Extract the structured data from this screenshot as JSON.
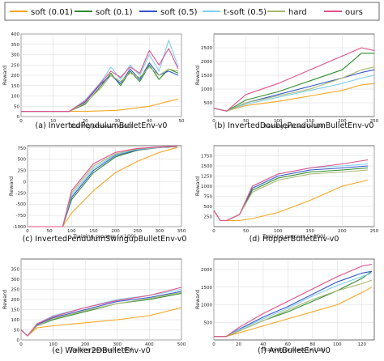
{
  "legend": [
    {
      "name": "soft (0.01)",
      "color": "#f5a623"
    },
    {
      "name": "soft (0.1)",
      "color": "#2e8b2e"
    },
    {
      "name": "soft (0.5)",
      "color": "#3355cc"
    },
    {
      "name": "t-soft (0.5)",
      "color": "#7fcfee"
    },
    {
      "name": "hard",
      "color": "#a8b870"
    },
    {
      "name": "ours",
      "color": "#e0508a"
    }
  ],
  "chart_data": [
    {
      "type": "line",
      "caption": "(a) InvertedPendulumBulletEnv-v0",
      "xlabel": "Training process (×100)",
      "ylabel": "Reward",
      "xlim": [
        0,
        50
      ],
      "ylim": [
        0,
        400
      ],
      "xticks": [
        0,
        10,
        20,
        30,
        40,
        50
      ],
      "yticks": [
        0,
        50,
        100,
        150,
        200,
        250,
        300,
        350,
        400
      ],
      "grid": true,
      "series": [
        {
          "name": "soft (0.01)",
          "x": [
            0,
            10,
            20,
            25,
            30,
            35,
            40,
            45,
            49
          ],
          "y": [
            25,
            25,
            25,
            28,
            30,
            40,
            50,
            70,
            85
          ]
        },
        {
          "name": "soft (0.1)",
          "x": [
            0,
            10,
            15,
            20,
            25,
            28,
            31,
            34,
            37,
            40,
            43,
            46,
            49
          ],
          "y": [
            25,
            25,
            25,
            60,
            150,
            210,
            150,
            220,
            170,
            250,
            180,
            230,
            210
          ]
        },
        {
          "name": "soft (0.5)",
          "x": [
            0,
            10,
            15,
            20,
            25,
            28,
            31,
            34,
            37,
            40,
            43,
            46,
            49
          ],
          "y": [
            25,
            25,
            25,
            70,
            160,
            200,
            160,
            230,
            180,
            260,
            200,
            220,
            200
          ]
        },
        {
          "name": "t-soft (0.5)",
          "x": [
            0,
            10,
            15,
            20,
            25,
            28,
            31,
            34,
            37,
            40,
            43,
            46,
            49
          ],
          "y": [
            25,
            25,
            25,
            80,
            170,
            240,
            180,
            250,
            200,
            300,
            220,
            370,
            240
          ]
        },
        {
          "name": "hard",
          "x": [
            0,
            10,
            15,
            20,
            25,
            28,
            31,
            34,
            37,
            40,
            43,
            46,
            49
          ],
          "y": [
            25,
            25,
            25,
            65,
            140,
            200,
            170,
            210,
            190,
            240,
            200,
            230,
            220
          ]
        },
        {
          "name": "ours",
          "x": [
            0,
            10,
            15,
            20,
            25,
            28,
            31,
            34,
            37,
            40,
            43,
            46,
            49
          ],
          "y": [
            25,
            25,
            25,
            75,
            165,
            220,
            190,
            240,
            210,
            320,
            250,
            330,
            230
          ]
        }
      ]
    },
    {
      "type": "line",
      "caption": "(b) InvertedDoublePendulumBulletEnv-v0",
      "xlabel": "Training process (×100)",
      "ylabel": "Reward",
      "xlim": [
        0,
        250
      ],
      "ylim": [
        0,
        3000
      ],
      "xticks": [
        0,
        50,
        100,
        150,
        200,
        250
      ],
      "yticks": [
        500,
        1000,
        1500,
        2000,
        2500
      ],
      "grid": true,
      "series": [
        {
          "name": "soft (0.01)",
          "x": [
            0,
            10,
            20,
            50,
            100,
            150,
            200,
            230,
            250
          ],
          "y": [
            300,
            250,
            200,
            400,
            550,
            750,
            950,
            1150,
            1200
          ]
        },
        {
          "name": "soft (0.1)",
          "x": [
            0,
            10,
            20,
            50,
            100,
            150,
            200,
            230,
            250
          ],
          "y": [
            300,
            250,
            200,
            600,
            900,
            1300,
            1700,
            2300,
            2300
          ]
        },
        {
          "name": "soft (0.5)",
          "x": [
            0,
            10,
            20,
            50,
            100,
            150,
            200,
            230,
            250
          ],
          "y": [
            300,
            250,
            200,
            500,
            800,
            1100,
            1400,
            1600,
            1700
          ]
        },
        {
          "name": "t-soft (0.5)",
          "x": [
            0,
            10,
            20,
            50,
            100,
            150,
            200,
            230,
            250
          ],
          "y": [
            300,
            250,
            200,
            450,
            700,
            950,
            1200,
            1400,
            1500
          ]
        },
        {
          "name": "hard",
          "x": [
            0,
            10,
            20,
            50,
            100,
            150,
            200,
            230,
            250
          ],
          "y": [
            300,
            250,
            200,
            500,
            750,
            1000,
            1400,
            1700,
            1800
          ]
        },
        {
          "name": "ours",
          "x": [
            0,
            10,
            20,
            50,
            100,
            150,
            200,
            230,
            250
          ],
          "y": [
            300,
            250,
            200,
            800,
            1200,
            1700,
            2200,
            2500,
            2400
          ]
        }
      ]
    },
    {
      "type": "line",
      "caption": "(c) InvertedPendulumSwingupBulletEnv-v0",
      "xlabel": "Training process (×100)",
      "ylabel": "Reward",
      "xlim": [
        0,
        350
      ],
      "ylim": [
        -1000,
        800
      ],
      "xticks": [
        0,
        50,
        100,
        150,
        200,
        250,
        300,
        350
      ],
      "yticks": [
        -1000,
        -750,
        -500,
        -250,
        0,
        250,
        500,
        750
      ],
      "grid": true,
      "series": [
        {
          "name": "soft (0.01)",
          "x": [
            0,
            80,
            100,
            150,
            200,
            250,
            300,
            340
          ],
          "y": [
            -1000,
            -1000,
            -700,
            -200,
            200,
            450,
            650,
            760
          ]
        },
        {
          "name": "soft (0.1)",
          "x": [
            0,
            80,
            100,
            150,
            200,
            250,
            300,
            340
          ],
          "y": [
            -1000,
            -1000,
            -400,
            200,
            550,
            700,
            760,
            780
          ]
        },
        {
          "name": "soft (0.5)",
          "x": [
            0,
            80,
            100,
            150,
            200,
            250,
            300,
            340
          ],
          "y": [
            -1000,
            -1000,
            -350,
            250,
            580,
            710,
            760,
            780
          ]
        },
        {
          "name": "t-soft (0.5)",
          "x": [
            0,
            80,
            100,
            150,
            200,
            250,
            300,
            340
          ],
          "y": [
            -1000,
            -1000,
            -300,
            300,
            600,
            720,
            760,
            780
          ]
        },
        {
          "name": "hard",
          "x": [
            0,
            80,
            100,
            150,
            200,
            250,
            300,
            340
          ],
          "y": [
            -1000,
            -1000,
            -250,
            350,
            620,
            730,
            770,
            780
          ]
        },
        {
          "name": "ours",
          "x": [
            0,
            80,
            100,
            150,
            200,
            250,
            300,
            340
          ],
          "y": [
            -1000,
            -1000,
            -200,
            400,
            650,
            740,
            770,
            790
          ]
        }
      ]
    },
    {
      "type": "line",
      "caption": "(d) HopperBulletEnv-v0",
      "xlabel": "Training process (×100)",
      "ylabel": "Reward",
      "xlim": [
        0,
        250
      ],
      "ylim": [
        0,
        2000
      ],
      "xticks": [
        0,
        50,
        100,
        150,
        200,
        250
      ],
      "yticks": [
        250,
        500,
        750,
        1000,
        1250,
        1500,
        1750
      ],
      "grid": true,
      "series": [
        {
          "name": "soft (0.01)",
          "x": [
            0,
            10,
            20,
            40,
            60,
            100,
            150,
            200,
            240
          ],
          "y": [
            400,
            150,
            150,
            150,
            200,
            350,
            650,
            1000,
            1150
          ]
        },
        {
          "name": "soft (0.1)",
          "x": [
            0,
            10,
            20,
            40,
            60,
            100,
            150,
            200,
            240
          ],
          "y": [
            400,
            150,
            150,
            300,
            900,
            1200,
            1350,
            1400,
            1450
          ]
        },
        {
          "name": "soft (0.5)",
          "x": [
            0,
            10,
            20,
            40,
            60,
            100,
            150,
            200,
            240
          ],
          "y": [
            400,
            150,
            150,
            300,
            950,
            1250,
            1400,
            1450,
            1500
          ]
        },
        {
          "name": "t-soft (0.5)",
          "x": [
            0,
            10,
            20,
            40,
            60,
            100,
            150,
            200,
            240
          ],
          "y": [
            400,
            150,
            150,
            300,
            1000,
            1300,
            1450,
            1500,
            1550
          ]
        },
        {
          "name": "hard",
          "x": [
            0,
            10,
            20,
            40,
            60,
            100,
            150,
            200,
            240
          ],
          "y": [
            400,
            150,
            150,
            300,
            850,
            1150,
            1300,
            1350,
            1400
          ]
        },
        {
          "name": "ours",
          "x": [
            0,
            10,
            20,
            40,
            60,
            100,
            150,
            200,
            240
          ],
          "y": [
            400,
            150,
            150,
            300,
            1000,
            1300,
            1450,
            1550,
            1650
          ]
        }
      ]
    },
    {
      "type": "line",
      "caption": "(e) Walker2DBulletEnv-v0",
      "xlabel": "Training process (×100)",
      "ylabel": "Reward",
      "xlim": [
        0,
        500
      ],
      "ylim": [
        0,
        400
      ],
      "xticks": [
        0,
        100,
        200,
        300,
        400,
        500
      ],
      "yticks": [
        0,
        50,
        100,
        150,
        200,
        250,
        300,
        350
      ],
      "grid": true,
      "series": [
        {
          "name": "soft (0.01)",
          "x": [
            0,
            20,
            50,
            100,
            200,
            300,
            400,
            500
          ],
          "y": [
            50,
            20,
            60,
            70,
            85,
            100,
            120,
            160
          ]
        },
        {
          "name": "soft (0.1)",
          "x": [
            0,
            20,
            50,
            100,
            200,
            300,
            400,
            500
          ],
          "y": [
            50,
            20,
            70,
            100,
            140,
            180,
            200,
            230
          ]
        },
        {
          "name": "soft (0.5)",
          "x": [
            0,
            20,
            50,
            100,
            200,
            300,
            400,
            500
          ],
          "y": [
            50,
            20,
            75,
            110,
            150,
            190,
            210,
            240
          ]
        },
        {
          "name": "t-soft (0.5)",
          "x": [
            0,
            20,
            50,
            100,
            200,
            300,
            400,
            500
          ],
          "y": [
            50,
            20,
            80,
            120,
            160,
            200,
            220,
            250
          ]
        },
        {
          "name": "hard",
          "x": [
            0,
            20,
            50,
            100,
            200,
            300,
            400,
            500
          ],
          "y": [
            50,
            20,
            70,
            105,
            145,
            180,
            205,
            235
          ]
        },
        {
          "name": "ours",
          "x": [
            0,
            20,
            50,
            100,
            200,
            300,
            400,
            500
          ],
          "y": [
            50,
            20,
            80,
            115,
            160,
            195,
            220,
            260
          ]
        }
      ]
    },
    {
      "type": "line",
      "caption": "(f) AntBulletEnv-v0",
      "xlabel": "Training process (×100)",
      "ylabel": "Reward",
      "xlim": [
        0,
        130
      ],
      "ylim": [
        0,
        2300
      ],
      "xticks": [
        0,
        20,
        40,
        60,
        80,
        100,
        120
      ],
      "yticks": [
        500,
        1000,
        1500,
        2000
      ],
      "grid": true,
      "series": [
        {
          "name": "soft (0.01)",
          "x": [
            0,
            10,
            20,
            40,
            60,
            80,
            100,
            120,
            128
          ],
          "y": [
            100,
            100,
            200,
            400,
            600,
            800,
            1000,
            1350,
            1500
          ]
        },
        {
          "name": "soft (0.1)",
          "x": [
            0,
            10,
            20,
            40,
            60,
            80,
            100,
            120,
            128
          ],
          "y": [
            100,
            100,
            250,
            550,
            800,
            1100,
            1400,
            1750,
            1950
          ]
        },
        {
          "name": "soft (0.5)",
          "x": [
            0,
            10,
            20,
            40,
            60,
            80,
            100,
            120,
            128
          ],
          "y": [
            100,
            100,
            300,
            650,
            950,
            1300,
            1650,
            1900,
            1950
          ]
        },
        {
          "name": "t-soft (0.5)",
          "x": [
            0,
            10,
            20,
            40,
            60,
            80,
            100,
            120,
            128
          ],
          "y": [
            100,
            100,
            280,
            600,
            900,
            1250,
            1550,
            1800,
            1900
          ]
        },
        {
          "name": "hard",
          "x": [
            0,
            10,
            20,
            40,
            60,
            80,
            100,
            120,
            128
          ],
          "y": [
            100,
            100,
            250,
            550,
            850,
            1150,
            1400,
            1600,
            1700
          ]
        },
        {
          "name": "ours",
          "x": [
            0,
            10,
            20,
            40,
            60,
            80,
            100,
            120,
            128
          ],
          "y": [
            100,
            100,
            350,
            750,
            1100,
            1450,
            1800,
            2100,
            2150
          ]
        }
      ]
    }
  ]
}
